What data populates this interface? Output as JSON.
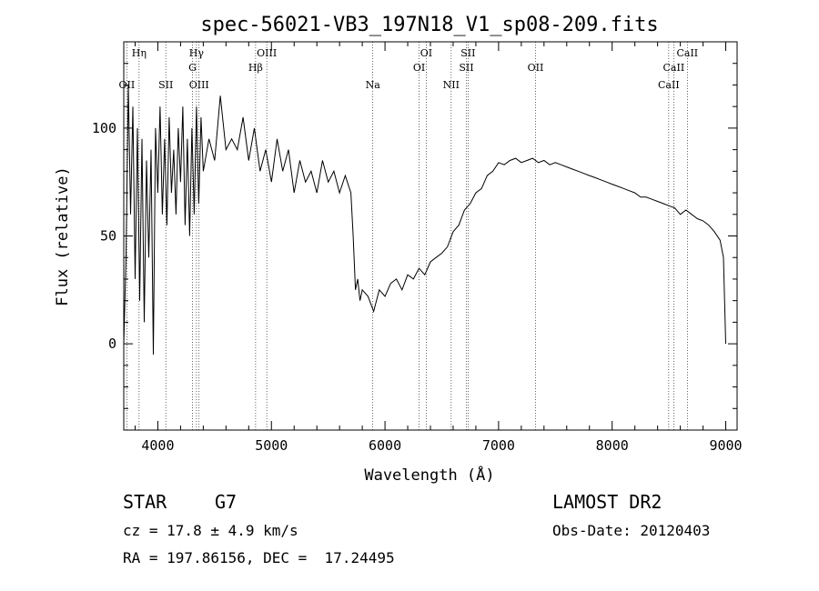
{
  "chart_data": {
    "type": "line",
    "title": "spec-56021-VB3_197N18_V1_sp08-209.fits",
    "xlabel": "Wavelength (Å)",
    "ylabel": "Flux (relative)",
    "xlim": [
      3700,
      9100
    ],
    "ylim": [
      -40,
      140
    ],
    "xticks": [
      4000,
      5000,
      6000,
      7000,
      8000,
      9000
    ],
    "xtick_labels": [
      "4000",
      "5000",
      "6000",
      "7000",
      "8000",
      "9000"
    ],
    "yticks": [
      0,
      50,
      100
    ],
    "ytick_labels": [
      "0",
      "50",
      "100"
    ],
    "grid": false,
    "line_markers": [
      {
        "label": "OII",
        "x": 3727,
        "row": 3
      },
      {
        "label": "Hη",
        "x": 3835,
        "row": 1
      },
      {
        "label": "SII",
        "x": 4070,
        "row": 3
      },
      {
        "label": "Hγ",
        "x": 4340,
        "row": 1
      },
      {
        "label": "G",
        "x": 4305,
        "row": 2
      },
      {
        "label": "OIII",
        "x": 4363,
        "row": 3
      },
      {
        "label": "OIII",
        "x": 4959,
        "row": 1
      },
      {
        "label": "Hβ",
        "x": 4861,
        "row": 2
      },
      {
        "label": "Na",
        "x": 5893,
        "row": 3
      },
      {
        "label": "OI",
        "x": 6363,
        "row": 1
      },
      {
        "label": "OI",
        "x": 6300,
        "row": 2
      },
      {
        "label": "NII",
        "x": 6583,
        "row": 3
      },
      {
        "label": "SII",
        "x": 6731,
        "row": 1
      },
      {
        "label": "SII",
        "x": 6716,
        "row": 2
      },
      {
        "label": "OII",
        "x": 7325,
        "row": 2
      },
      {
        "label": "CaII",
        "x": 8662,
        "row": 1
      },
      {
        "label": "CaII",
        "x": 8542,
        "row": 2
      },
      {
        "label": "CaII",
        "x": 8498,
        "row": 3
      }
    ],
    "series": [
      {
        "x": [
          3700,
          3720,
          3740,
          3760,
          3780,
          3800,
          3820,
          3840,
          3860,
          3880,
          3900,
          3920,
          3940,
          3960,
          3980,
          4000,
          4020,
          4040,
          4060,
          4080,
          4100,
          4120,
          4140,
          4160,
          4180,
          4200,
          4220,
          4240,
          4260,
          4280,
          4300,
          4320,
          4340,
          4360,
          4380,
          4400,
          4450,
          4500,
          4550,
          4600,
          4650,
          4700,
          4750,
          4800,
          4850,
          4900,
          4950,
          5000,
          5050,
          5100,
          5150,
          5200,
          5250,
          5300,
          5350,
          5400,
          5450,
          5500,
          5550,
          5600,
          5650,
          5700,
          5720,
          5740,
          5760,
          5780,
          5800,
          5850,
          5900,
          5950,
          6000,
          6050,
          6100,
          6150,
          6200,
          6250,
          6300,
          6350,
          6400,
          6450,
          6500,
          6550,
          6600,
          6650,
          6700,
          6750,
          6800,
          6850,
          6900,
          6950,
          7000,
          7050,
          7100,
          7150,
          7200,
          7250,
          7300,
          7350,
          7400,
          7450,
          7500,
          7550,
          7600,
          7650,
          7700,
          7750,
          7800,
          7850,
          7900,
          7950,
          8000,
          8050,
          8100,
          8150,
          8200,
          8250,
          8300,
          8350,
          8400,
          8450,
          8500,
          8550,
          8600,
          8650,
          8700,
          8750,
          8800,
          8850,
          8900,
          8950,
          8980,
          9000
        ],
        "y": [
          0,
          40,
          120,
          60,
          110,
          30,
          100,
          20,
          95,
          10,
          85,
          40,
          90,
          -5,
          100,
          70,
          110,
          60,
          95,
          55,
          105,
          70,
          90,
          60,
          100,
          75,
          110,
          55,
          95,
          50,
          100,
          60,
          110,
          65,
          105,
          80,
          95,
          85,
          115,
          90,
          95,
          90,
          105,
          85,
          100,
          80,
          90,
          75,
          95,
          80,
          90,
          70,
          85,
          75,
          80,
          70,
          85,
          75,
          80,
          70,
          78,
          70,
          50,
          25,
          30,
          20,
          25,
          22,
          15,
          25,
          22,
          28,
          30,
          25,
          32,
          30,
          35,
          32,
          38,
          40,
          42,
          45,
          52,
          55,
          62,
          65,
          70,
          72,
          78,
          80,
          84,
          83,
          85,
          86,
          84,
          85,
          86,
          84,
          85,
          83,
          84,
          83,
          82,
          81,
          80,
          79,
          78,
          77,
          76,
          75,
          74,
          73,
          72,
          71,
          70,
          68,
          68,
          67,
          66,
          65,
          64,
          63,
          60,
          62,
          60,
          58,
          57,
          55,
          52,
          48,
          40,
          0
        ]
      }
    ]
  },
  "info": {
    "object_class": "STAR",
    "subclass": "G7",
    "survey": "LAMOST DR2",
    "cz": "cz = 17.8 ± 4.9 km/s",
    "obs_date": "Obs-Date: 20120403",
    "coords": "RA = 197.86156, DEC =  17.24495"
  }
}
